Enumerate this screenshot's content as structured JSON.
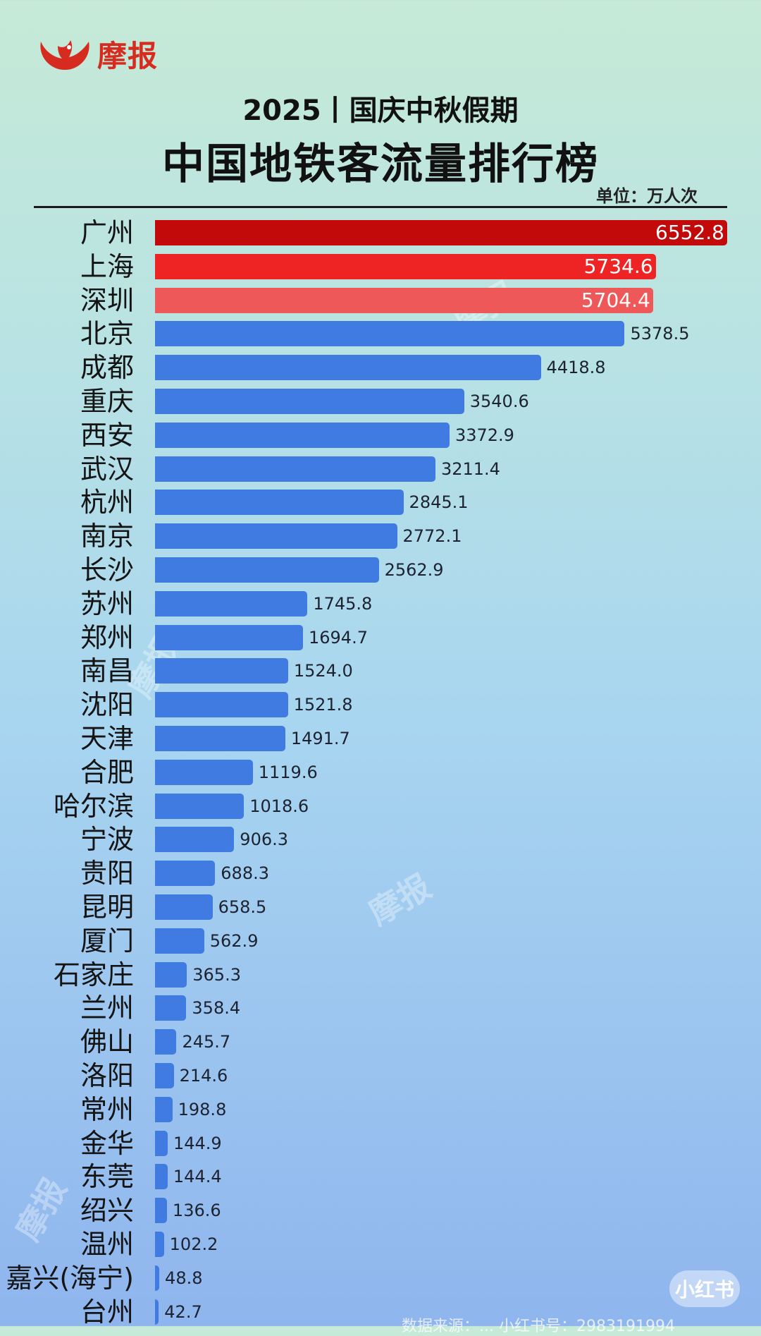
{
  "brand": {
    "name": "摩报",
    "color": "#d62c1f"
  },
  "header": {
    "subtitle": "2025丨国庆中秋假期",
    "title": "中国地铁客流量排行榜",
    "unit": "单位：万人次"
  },
  "colors": {
    "top1": "#c20a0a",
    "top2": "#ee2424",
    "top3": "#ef5858",
    "default": "#3f7be0"
  },
  "watermark": {
    "text": "摩报"
  },
  "badge": {
    "text": "小红书"
  },
  "footer": {
    "text": "数据来源：... 小红书号：2983191994"
  },
  "chart_data": {
    "type": "bar",
    "orientation": "horizontal",
    "title": "中国地铁客流量排行榜",
    "subtitle": "2025丨国庆中秋假期",
    "unit": "单位：万人次",
    "categories": [
      "广州",
      "上海",
      "深圳",
      "北京",
      "成都",
      "重庆",
      "西安",
      "武汉",
      "杭州",
      "南京",
      "长沙",
      "苏州",
      "郑州",
      "南昌",
      "沈阳",
      "天津",
      "合肥",
      "哈尔滨",
      "宁波",
      "贵阳",
      "昆明",
      "厦门",
      "石家庄",
      "兰州",
      "佛山",
      "洛阳",
      "常州",
      "金华",
      "东莞",
      "绍兴",
      "温州",
      "嘉兴(海宁)",
      "台州"
    ],
    "values": [
      6552.8,
      5734.6,
      5704.4,
      5378.5,
      4418.8,
      3540.6,
      3372.9,
      3211.4,
      2845.1,
      2772.1,
      2562.9,
      1745.8,
      1694.7,
      1524.0,
      1521.8,
      1491.7,
      1119.6,
      1018.6,
      906.3,
      688.3,
      658.5,
      562.9,
      365.3,
      358.4,
      245.7,
      214.6,
      198.8,
      144.9,
      144.4,
      136.6,
      102.2,
      48.8,
      42.7
    ],
    "value_labels": [
      "6552.8",
      "5734.6",
      "5704.4",
      "5378.5",
      "4418.8",
      "3540.6",
      "3372.9",
      "3211.4",
      "2845.1",
      "2772.1",
      "2562.9",
      "1745.8",
      "1694.7",
      "1524.0",
      "1521.8",
      "1491.7",
      "1119.6",
      "1018.6",
      "906.3",
      "688.3",
      "658.5",
      "562.9",
      "365.3",
      "358.4",
      "245.7",
      "214.6",
      "198.8",
      "144.9",
      "144.4",
      "136.6",
      "102.2",
      "48.8",
      "42.7"
    ],
    "xlim": [
      0,
      6552.8
    ],
    "grid": false,
    "legend": "none"
  }
}
